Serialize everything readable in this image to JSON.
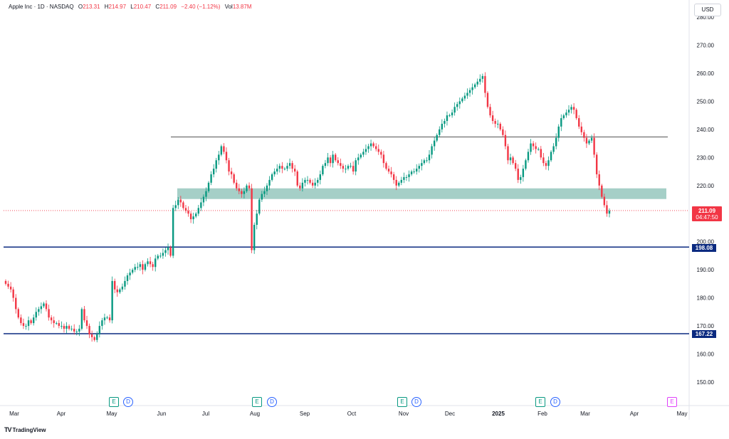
{
  "header": {
    "symbol": "Apple Inc · 1D · NASDAQ",
    "o_label": "O",
    "o_value": "213.31",
    "h_label": "H",
    "h_value": "214.97",
    "l_label": "L",
    "l_value": "210.47",
    "c_label": "C",
    "c_value": "211.09",
    "change": "−2.40 (−1.12%)",
    "vol_label": "Vol",
    "vol_value": "13.87M"
  },
  "currency": "USD",
  "price_tags": {
    "last_price": "211.09",
    "countdown": "04:47:50",
    "level_upper": "198.08",
    "level_lower": "167.22"
  },
  "events": [
    {
      "type": "E",
      "month": "May"
    },
    {
      "type": "D",
      "month": "May"
    },
    {
      "type": "E",
      "month": "Aug"
    },
    {
      "type": "D",
      "month": "Aug"
    },
    {
      "type": "E",
      "month": "Nov"
    },
    {
      "type": "D",
      "month": "Nov"
    },
    {
      "type": "E",
      "month": "Feb"
    },
    {
      "type": "D",
      "month": "Feb"
    },
    {
      "type": "E",
      "month": "May"
    }
  ],
  "branding": "TradingView",
  "colors": {
    "up": "#089981",
    "down": "#f23645",
    "zone": "#8ec3b9",
    "hline": "#0b2a80",
    "resistance": "#555555"
  },
  "chart_data": {
    "type": "candlestick",
    "title": "Apple Inc · 1D · NASDAQ",
    "y_ticks": [
      "150.00",
      "160.00",
      "170.00",
      "180.00",
      "190.00",
      "200.00",
      "210.00",
      "220.00",
      "230.00",
      "240.00",
      "250.00",
      "260.00",
      "270.00",
      "280.00"
    ],
    "x_ticks": [
      "Mar",
      "Apr",
      "May",
      "Jun",
      "Jul",
      "Aug",
      "Sep",
      "Oct",
      "Nov",
      "Dec",
      "2025",
      "Feb",
      "Mar",
      "Apr",
      "May"
    ],
    "ylim": [
      145,
      281
    ],
    "last_price": 211.09,
    "horizontal_levels": [
      198.08,
      167.22
    ],
    "resistance_line": 237.3,
    "support_zone": [
      215.2,
      219.0
    ],
    "series_closes": [
      185,
      184,
      183,
      180,
      176,
      173,
      171,
      170,
      170,
      172,
      171,
      173,
      175,
      176,
      177,
      178,
      176,
      173,
      172,
      171,
      171,
      170,
      170,
      169,
      170,
      169,
      169,
      168,
      168,
      169,
      176,
      172,
      170,
      167,
      166,
      165,
      167,
      170,
      172,
      173,
      173,
      172,
      186,
      183,
      182,
      183,
      184,
      186,
      188,
      189,
      190,
      191,
      191,
      192,
      190,
      192,
      193,
      192,
      191,
      194,
      195,
      195,
      196,
      197,
      198,
      195,
      212,
      213,
      215,
      214,
      212,
      211,
      210,
      208,
      209,
      210,
      212,
      214,
      216,
      218,
      221,
      224,
      226,
      229,
      231,
      234,
      232,
      229,
      225,
      224,
      221,
      219,
      218,
      217,
      218,
      220,
      219,
      197,
      206,
      210,
      215,
      217,
      218,
      220,
      222,
      224,
      225,
      226,
      227,
      226,
      226,
      227,
      228,
      226,
      225,
      220,
      219,
      221,
      222,
      222,
      221,
      220,
      221,
      222,
      224,
      227,
      228,
      230,
      228,
      231,
      229,
      228,
      227,
      226,
      226,
      227,
      227,
      225,
      229,
      230,
      231,
      232,
      233,
      234,
      235,
      234,
      233,
      232,
      231,
      228,
      226,
      225,
      224,
      222,
      220,
      221,
      222,
      223,
      223,
      224,
      225,
      225,
      226,
      227,
      228,
      229,
      229,
      231,
      234,
      236,
      238,
      240,
      242,
      243,
      245,
      245,
      246,
      248,
      249,
      250,
      251,
      252,
      253,
      254,
      255,
      256,
      257,
      258,
      259,
      253,
      248,
      245,
      243,
      242,
      242,
      240,
      238,
      234,
      229,
      230,
      228,
      226,
      222,
      223,
      226,
      229,
      232,
      235,
      234,
      233,
      233,
      230,
      228,
      227,
      229,
      232,
      234,
      237,
      241,
      244,
      245,
      246,
      247,
      248,
      247,
      244,
      241,
      239,
      237,
      235,
      236,
      237,
      231,
      224,
      220,
      216,
      213,
      210,
      211
    ]
  }
}
